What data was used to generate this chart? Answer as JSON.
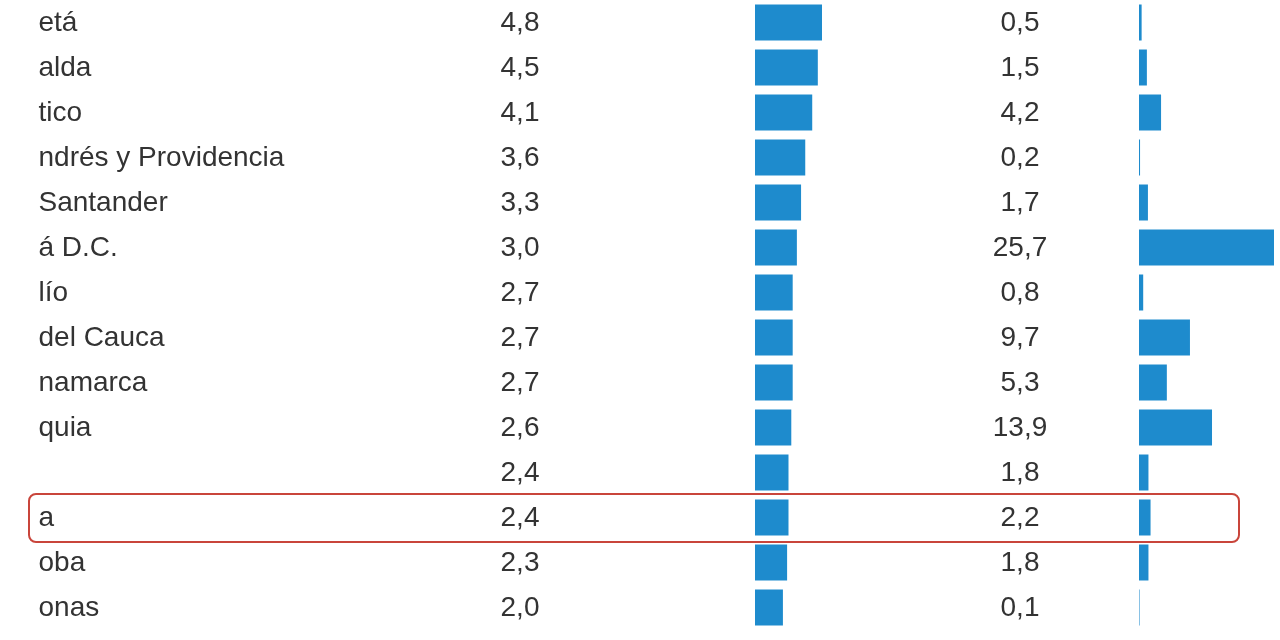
{
  "chart_data": [
    {
      "type": "bar",
      "orientation": "horizontal",
      "tick_labels": "y",
      "color": "#1e8bcd",
      "categories": [
        "etá",
        "alda",
        "tico",
        "ndrés y Providencia",
        "Santander",
        "á D.C.",
        "lío",
        "del Cauca",
        "namarca",
        "quia",
        null,
        "a",
        "oba",
        "onas"
      ],
      "values": [
        4.8,
        4.5,
        4.1,
        3.6,
        3.3,
        3.0,
        2.7,
        2.7,
        2.7,
        2.6,
        2.4,
        2.4,
        2.3,
        2.0
      ],
      "value_labels": [
        "4,8",
        "4,5",
        "4,1",
        "3,6",
        "3,3",
        "3,0",
        "2,7",
        "2,7",
        "2,7",
        "2,6",
        "2,4",
        "2,4",
        "2,3",
        "2,0"
      ]
    },
    {
      "type": "bar",
      "orientation": "horizontal",
      "tick_labels": false,
      "color": "#1e8bcd",
      "values": [
        0.5,
        1.5,
        4.2,
        0.2,
        1.7,
        25.7,
        0.8,
        9.7,
        5.3,
        13.9,
        1.8,
        2.2,
        1.8,
        0.1
      ],
      "value_labels": [
        "0,5",
        "1,5",
        "4,2",
        "0,2",
        "1,7",
        "25,7",
        "0,8",
        "9,7",
        "5,3",
        "13,9",
        "1,8",
        "2,2",
        "1,8",
        "0,1"
      ]
    }
  ]
}
